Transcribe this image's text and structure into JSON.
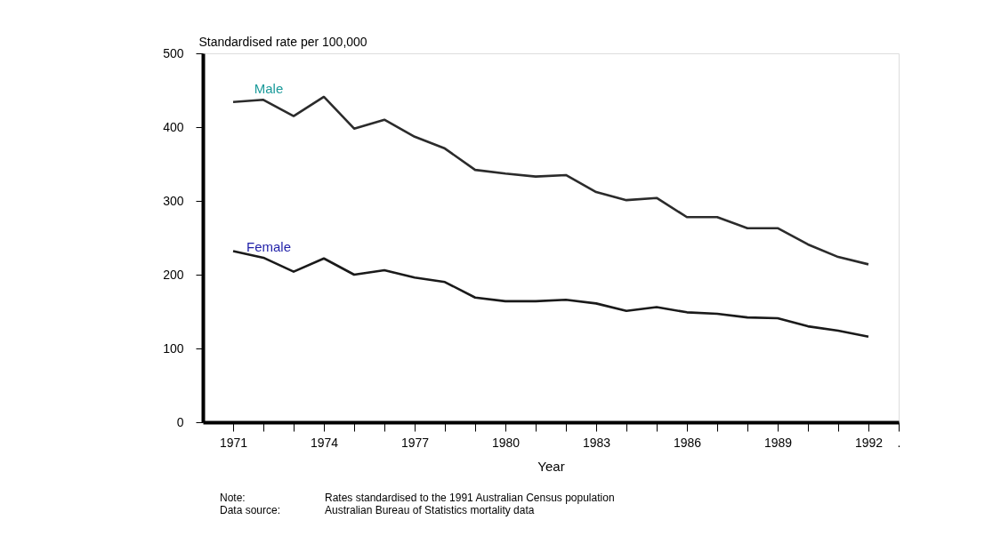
{
  "chart_data": {
    "type": "line",
    "xlabel": "Year",
    "ylabel": "Standardised rate per 100,000",
    "x": [
      1971,
      1972,
      1973,
      1974,
      1975,
      1976,
      1977,
      1978,
      1979,
      1980,
      1981,
      1982,
      1983,
      1984,
      1985,
      1986,
      1987,
      1988,
      1989,
      1990,
      1991,
      1992
    ],
    "series": [
      {
        "name": "Male",
        "color": "#2b2b2b",
        "values": [
          434,
          437,
          415,
          441,
          398,
          410,
          387,
          371,
          342,
          337,
          333,
          335,
          312,
          301,
          304,
          278,
          278,
          263,
          263,
          241,
          224,
          214
        ]
      },
      {
        "name": "Female",
        "color": "#1a1a1a",
        "values": [
          232,
          223,
          204,
          222,
          200,
          206,
          196,
          190,
          169,
          164,
          164,
          166,
          161,
          151,
          156,
          149,
          147,
          142,
          141,
          130,
          124,
          116
        ]
      }
    ],
    "xlim": [
      1970,
      1993
    ],
    "ylim": [
      0,
      500
    ],
    "xticks": [
      1971,
      {
        "value": 1972,
        "label": null
      },
      {
        "value": 1973,
        "label": null
      },
      1974,
      {
        "value": 1975,
        "label": null
      },
      {
        "value": 1976,
        "label": null
      },
      1977,
      {
        "value": 1978,
        "label": null
      },
      {
        "value": 1979,
        "label": null
      },
      1980,
      {
        "value": 1981,
        "label": null
      },
      {
        "value": 1982,
        "label": null
      },
      1983,
      {
        "value": 1984,
        "label": null
      },
      {
        "value": 1985,
        "label": null
      },
      1986,
      {
        "value": 1987,
        "label": null
      },
      {
        "value": 1988,
        "label": null
      },
      1989,
      {
        "value": 1990,
        "label": null
      },
      {
        "value": 1991,
        "label": null
      },
      1992,
      {
        "value": 1993,
        "label": "."
      }
    ],
    "yticks": [
      0,
      100,
      200,
      300,
      400,
      500
    ],
    "grid": false,
    "marker": "none",
    "line_style": "solid",
    "annotations": [
      "Note:",
      "Rates standardised to the 1991 Australian Census population",
      "Data source:",
      "Australian Bureau of Statistics mortality data"
    ]
  }
}
